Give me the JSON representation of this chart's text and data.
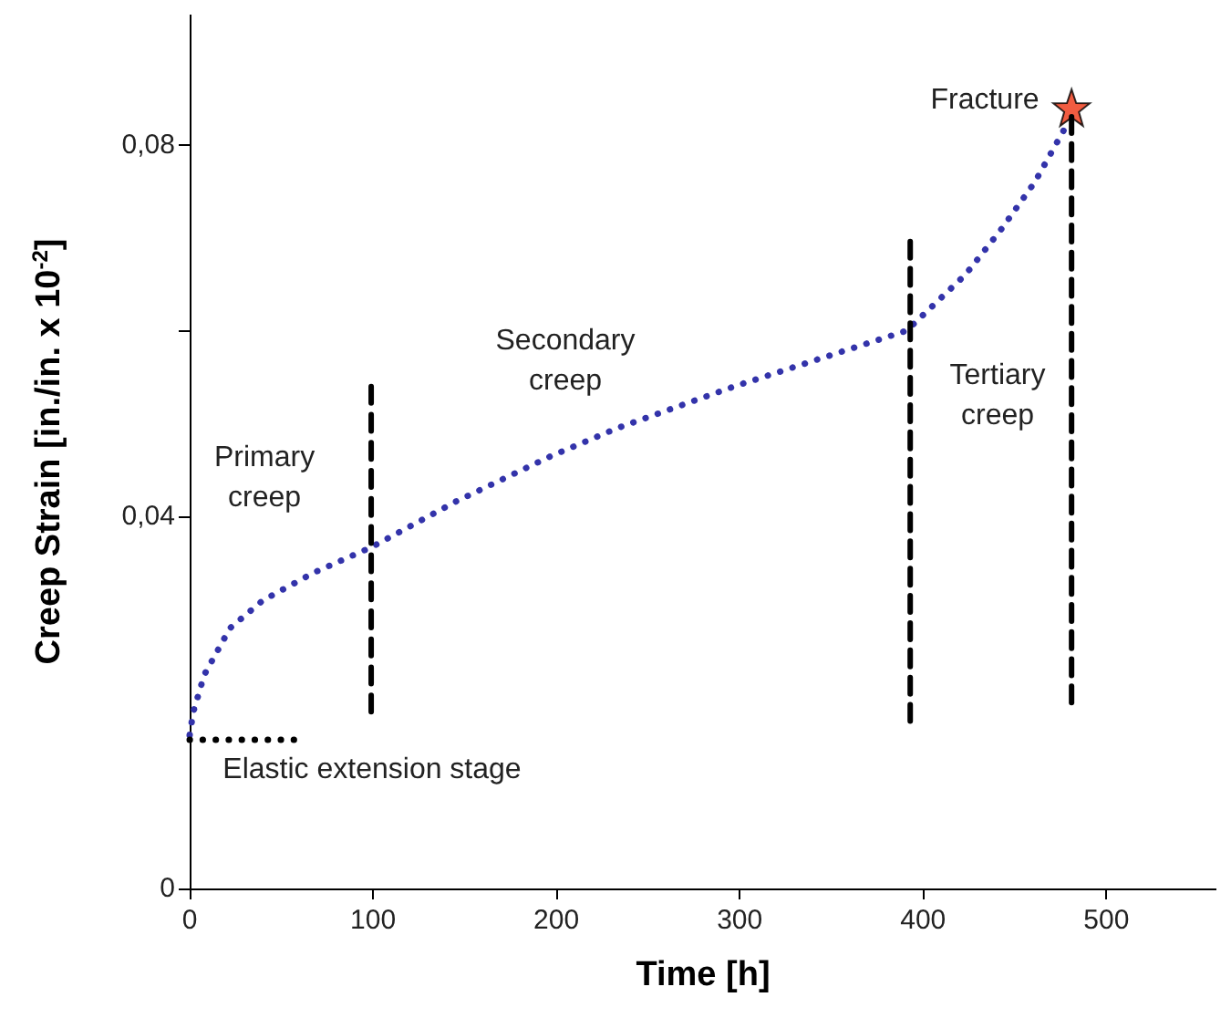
{
  "chart_data": {
    "type": "line",
    "xlabel": "Time [h]",
    "ylabel": "Creep Strain [in./in. x 10$^{-2}$]",
    "xlim": [
      0,
      560
    ],
    "xticks": [
      0,
      100,
      200,
      300,
      400,
      500
    ],
    "ylim": [
      0,
      0.094
    ],
    "yticks": [
      0,
      {
        "value": 0.04,
        "label": "0,04"
      },
      {
        "value": 0.06,
        "label": null
      },
      {
        "value": 0.08,
        "label": "0,08"
      }
    ],
    "grid": false,
    "series": [
      {
        "color": "#3333aa",
        "line_style": "dotted",
        "marker": "none",
        "x": [
          0,
          2,
          8,
          22,
          40,
          68,
          99,
          145,
          197,
          233,
          297,
          391,
          423,
          443,
          461,
          478
        ],
        "values": [
          0.0165,
          0.019,
          0.023,
          0.028,
          0.031,
          0.034,
          0.0367,
          0.0416,
          0.0465,
          0.0495,
          0.054,
          0.06,
          0.066,
          0.071,
          0.076,
          0.082
        ]
      },
      {
        "color": "#000000",
        "line_style": "dotted",
        "marker": "none",
        "x": [
          0,
          63
        ],
        "values": [
          0.016,
          0.016
        ]
      },
      {
        "color": "#000000",
        "line_style": "dashed",
        "marker": "none",
        "x": [
          99,
          99
        ],
        "values": [
          0.019,
          0.054
        ]
      },
      {
        "color": "#000000",
        "line_style": "dashed",
        "marker": "none",
        "x": [
          393,
          393
        ],
        "values": [
          0.018,
          0.0696
        ]
      },
      {
        "color": "#000000",
        "line_style": "dashed",
        "marker": "none",
        "x": [
          481,
          481
        ],
        "values": [
          0.02,
          0.083
        ]
      },
      {
        "type": "scatter",
        "color": "#ee3311",
        "marker": "star",
        "x": [
          481
        ],
        "values": [
          0.084
        ]
      }
    ],
    "annotations": [
      "Primary\ncreep",
      "Secondary\ncreep",
      "Tertiary\ncreep",
      "Elastic extension stage",
      "Fracture"
    ]
  }
}
